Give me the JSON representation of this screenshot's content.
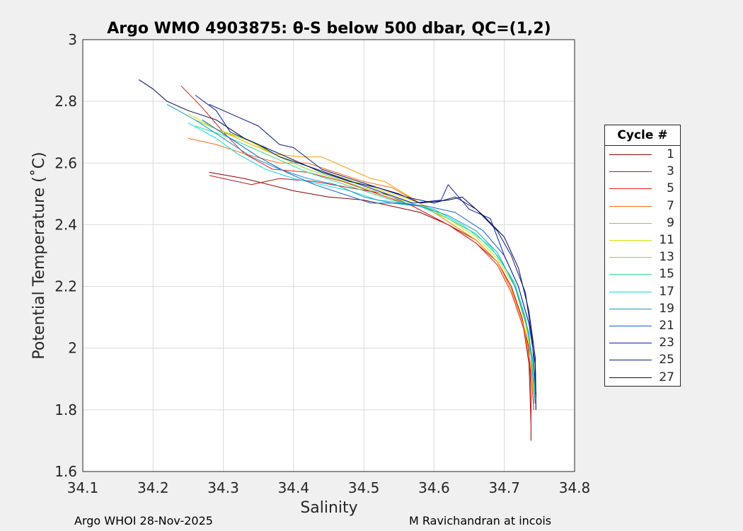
{
  "chart_data": {
    "type": "line",
    "title": "Argo WMO 4903875: θ-S below 500 dbar,  QC=(1,2)",
    "xlabel": "Salinity",
    "ylabel": "Potential Temperature (˚C)",
    "xlim": [
      34.1,
      34.8
    ],
    "ylim": [
      1.6,
      3.0
    ],
    "xticks": [
      "34.1",
      "34.2",
      "34.3",
      "34.4",
      "34.5",
      "34.6",
      "34.7",
      "34.8"
    ],
    "yticks": [
      "1.6",
      "1.8",
      "2",
      "2.2",
      "2.4",
      "2.6",
      "2.8",
      "3"
    ],
    "grid": true,
    "legend_title": "Cycle #",
    "legend_position": "right",
    "series": [
      {
        "name": "1",
        "color": "#8b0000",
        "x": [
          34.28,
          34.33,
          34.4,
          34.45,
          34.5,
          34.54,
          34.58,
          34.62,
          34.66,
          34.69,
          34.71,
          34.725,
          34.735,
          34.738,
          34.738
        ],
        "y": [
          2.57,
          2.55,
          2.51,
          2.49,
          2.48,
          2.46,
          2.44,
          2.4,
          2.35,
          2.28,
          2.2,
          2.1,
          2.0,
          1.85,
          1.7
        ]
      },
      {
        "name": "3",
        "color": "#b71c1c",
        "x": [
          34.28,
          34.3,
          34.34,
          34.38,
          34.43,
          34.48,
          34.53,
          34.57,
          34.62,
          34.66,
          34.69,
          34.71,
          34.725,
          34.735,
          34.738
        ],
        "y": [
          2.56,
          2.55,
          2.53,
          2.55,
          2.54,
          2.52,
          2.5,
          2.46,
          2.4,
          2.34,
          2.28,
          2.2,
          2.1,
          1.95,
          1.75
        ]
      },
      {
        "name": "5",
        "color": "#ee1c1c",
        "x": [
          34.24,
          34.27,
          34.3,
          34.33,
          34.37,
          34.42,
          34.47,
          34.52,
          34.57,
          34.62,
          34.66,
          34.69,
          34.71,
          34.728,
          34.738,
          34.742
        ],
        "y": [
          2.85,
          2.78,
          2.7,
          2.63,
          2.58,
          2.57,
          2.54,
          2.5,
          2.46,
          2.4,
          2.34,
          2.27,
          2.18,
          2.06,
          1.92,
          1.8
        ]
      },
      {
        "name": "7",
        "color": "#ff6a10",
        "x": [
          34.25,
          34.29,
          34.33,
          34.38,
          34.42,
          34.46,
          34.5,
          34.54,
          34.58,
          34.62,
          34.66,
          34.69,
          34.71,
          34.728,
          34.738,
          34.742
        ],
        "y": [
          2.68,
          2.66,
          2.63,
          2.6,
          2.6,
          2.57,
          2.54,
          2.52,
          2.47,
          2.41,
          2.35,
          2.28,
          2.19,
          2.07,
          1.94,
          1.82
        ]
      },
      {
        "name": "9",
        "color": "#f5a000",
        "x": [
          34.29,
          34.33,
          34.37,
          34.41,
          34.44,
          34.48,
          34.51,
          34.53,
          34.58,
          34.62,
          34.66,
          34.69,
          34.71,
          34.728,
          34.738,
          34.742
        ],
        "y": [
          2.71,
          2.67,
          2.63,
          2.62,
          2.62,
          2.58,
          2.55,
          2.54,
          2.47,
          2.41,
          2.35,
          2.28,
          2.19,
          2.07,
          1.94,
          1.83
        ]
      },
      {
        "name": "11",
        "color": "#d9e000",
        "x": [
          34.25,
          34.29,
          34.33,
          34.37,
          34.42,
          34.46,
          34.5,
          34.54,
          34.58,
          34.62,
          34.66,
          34.69,
          34.715,
          34.73,
          34.74,
          34.743
        ],
        "y": [
          2.76,
          2.71,
          2.68,
          2.63,
          2.59,
          2.56,
          2.53,
          2.5,
          2.47,
          2.42,
          2.36,
          2.29,
          2.2,
          2.08,
          1.95,
          1.84
        ]
      },
      {
        "name": "13",
        "color": "#7ee02a",
        "x": [
          34.26,
          34.3,
          34.34,
          34.38,
          34.42,
          34.46,
          34.5,
          34.54,
          34.58,
          34.62,
          34.66,
          34.69,
          34.715,
          34.73,
          34.74,
          34.743
        ],
        "y": [
          2.74,
          2.7,
          2.67,
          2.62,
          2.58,
          2.55,
          2.52,
          2.49,
          2.46,
          2.42,
          2.37,
          2.3,
          2.21,
          2.09,
          1.96,
          1.85
        ]
      },
      {
        "name": "15",
        "color": "#2ee08a",
        "x": [
          34.26,
          34.3,
          34.34,
          34.38,
          34.42,
          34.46,
          34.5,
          34.54,
          34.58,
          34.62,
          34.66,
          34.69,
          34.715,
          34.73,
          34.74,
          34.744
        ],
        "y": [
          2.72,
          2.69,
          2.65,
          2.61,
          2.57,
          2.54,
          2.51,
          2.48,
          2.46,
          2.42,
          2.37,
          2.3,
          2.21,
          2.1,
          1.97,
          1.86
        ]
      },
      {
        "name": "17",
        "color": "#10d8e0",
        "x": [
          34.25,
          34.29,
          34.32,
          34.36,
          34.4,
          34.44,
          34.48,
          34.52,
          34.56,
          34.6,
          34.64,
          34.68,
          34.71,
          34.73,
          34.74,
          34.744
        ],
        "y": [
          2.73,
          2.68,
          2.63,
          2.58,
          2.55,
          2.53,
          2.51,
          2.48,
          2.47,
          2.45,
          2.4,
          2.33,
          2.23,
          2.1,
          1.97,
          1.85
        ]
      },
      {
        "name": "19",
        "color": "#1898c8",
        "x": [
          34.22,
          34.26,
          34.3,
          34.34,
          34.38,
          34.42,
          34.46,
          34.5,
          34.54,
          34.58,
          34.62,
          34.66,
          34.69,
          34.715,
          34.735,
          34.744
        ],
        "y": [
          2.79,
          2.74,
          2.68,
          2.62,
          2.58,
          2.55,
          2.53,
          2.49,
          2.47,
          2.46,
          2.43,
          2.38,
          2.31,
          2.2,
          2.05,
          1.82
        ]
      },
      {
        "name": "21",
        "color": "#1060d8",
        "x": [
          34.27,
          34.31,
          34.35,
          34.39,
          34.43,
          34.47,
          34.51,
          34.55,
          34.59,
          34.63,
          34.67,
          34.7,
          34.72,
          34.735,
          34.744,
          34.745
        ],
        "y": [
          2.74,
          2.68,
          2.62,
          2.57,
          2.53,
          2.5,
          2.47,
          2.47,
          2.46,
          2.44,
          2.38,
          2.3,
          2.2,
          2.08,
          1.95,
          1.8
        ]
      },
      {
        "name": "23",
        "color": "#0d1aa8",
        "x": [
          34.26,
          34.29,
          34.31,
          34.35,
          34.38,
          34.42,
          34.47,
          34.52,
          34.57,
          34.61,
          34.62,
          34.65,
          34.68,
          34.7,
          34.72,
          34.735,
          34.744,
          34.745
        ],
        "y": [
          2.82,
          2.77,
          2.7,
          2.66,
          2.62,
          2.59,
          2.55,
          2.51,
          2.47,
          2.48,
          2.53,
          2.45,
          2.42,
          2.3,
          2.2,
          2.08,
          1.95,
          1.8
        ]
      },
      {
        "name": "25",
        "color": "#0a1a80",
        "x": [
          34.28,
          34.32,
          34.35,
          34.38,
          34.4,
          34.44,
          34.48,
          34.52,
          34.56,
          34.6,
          34.63,
          34.66,
          34.69,
          34.71,
          34.73,
          34.74,
          34.745
        ],
        "y": [
          2.79,
          2.75,
          2.72,
          2.66,
          2.65,
          2.58,
          2.55,
          2.52,
          2.49,
          2.47,
          2.49,
          2.45,
          2.38,
          2.3,
          2.18,
          2.02,
          1.85
        ]
      },
      {
        "name": "27",
        "color": "#000a50",
        "x": [
          34.18,
          34.2,
          34.22,
          34.25,
          34.29,
          34.33,
          34.36,
          34.4,
          34.44,
          34.48,
          34.52,
          34.55,
          34.58,
          34.62,
          34.64,
          34.67,
          34.7,
          34.72,
          34.735,
          34.744,
          34.745
        ],
        "y": [
          2.87,
          2.84,
          2.8,
          2.77,
          2.74,
          2.68,
          2.65,
          2.61,
          2.57,
          2.54,
          2.52,
          2.5,
          2.47,
          2.48,
          2.49,
          2.43,
          2.36,
          2.26,
          2.12,
          1.97,
          1.84
        ]
      }
    ]
  },
  "footer": {
    "left": "Argo WHOI 28-Nov-2025",
    "right": "M Ravichandran at incois"
  }
}
